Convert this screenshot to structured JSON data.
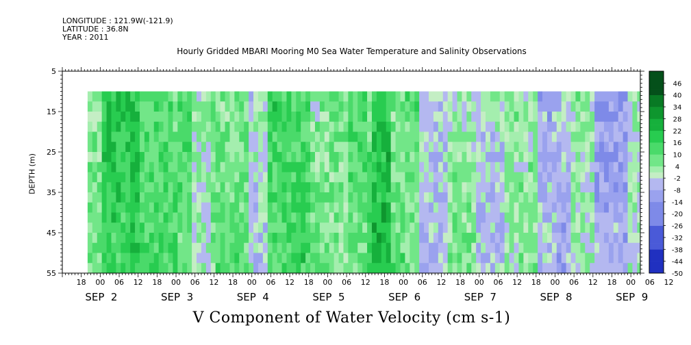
{
  "header": {
    "longitude": "LONGITUDE : 121.9W(-121.9)",
    "latitude": "LATITUDE : 36.8N",
    "year": "YEAR : 2011"
  },
  "chart_data": {
    "type": "heatmap",
    "title": "Hourly Gridded MBARI Mooring M0 Sea Water Temperature and Salinity Observations",
    "xlabel": "V Component of Water Velocity (cm s-1)",
    "ylabel": "DEPTH (m)",
    "ylim": [
      55,
      5
    ],
    "y_ticks": [
      "5",
      "15",
      "25",
      "35",
      "45",
      "55"
    ],
    "x_hour_ticks": [
      "18",
      "00",
      "06",
      "12",
      "18",
      "00",
      "06",
      "12",
      "18",
      "00",
      "06",
      "12",
      "18",
      "00",
      "06",
      "12",
      "18",
      "00",
      "06",
      "12",
      "18",
      "00",
      "06",
      "12",
      "18",
      "00",
      "06",
      "12",
      "18",
      "00",
      "06",
      "12"
    ],
    "x_day_labels": [
      "SEP  2",
      "SEP  3",
      "SEP  4",
      "SEP  5",
      "SEP  6",
      "SEP  7",
      "SEP  8",
      "SEP  9"
    ],
    "x_range_hours_from_sep1_12": [
      0,
      183
    ],
    "data_start_hour": 8,
    "data_depth_range": [
      10,
      55
    ],
    "colorbar_labels": [
      "46",
      "40",
      "34",
      "28",
      "22",
      "16",
      "10",
      "4",
      "-2",
      "-8",
      "-14",
      "-20",
      "-26",
      "-32",
      "-38",
      "-44",
      "-50"
    ],
    "colorbar_range": [
      -50,
      52
    ],
    "colors": {
      "strong_green": "#1ed24a",
      "green": "#50e070",
      "light_green": "#96eca4",
      "pale_green": "#b4f0b6",
      "light_blue": "#b4b8f0",
      "blue": "#9aa2ee",
      "deep_blue": "#7e8ae8"
    },
    "description_bands": [
      {
        "start_hour": 8,
        "end_hour": 12,
        "v": 6
      },
      {
        "start_hour": 12,
        "end_hour": 24,
        "v": 18
      },
      {
        "start_hour": 24,
        "end_hour": 40,
        "v": 12
      },
      {
        "start_hour": 40,
        "end_hour": 46,
        "v": 2
      },
      {
        "start_hour": 46,
        "end_hour": 58,
        "v": 8
      },
      {
        "start_hour": 58,
        "end_hour": 64,
        "v": -2
      },
      {
        "start_hour": 64,
        "end_hour": 78,
        "v": 14
      },
      {
        "start_hour": 78,
        "end_hour": 90,
        "v": 6
      },
      {
        "start_hour": 90,
        "end_hour": 98,
        "v": 10
      },
      {
        "start_hour": 98,
        "end_hour": 104,
        "v": 22
      },
      {
        "start_hour": 104,
        "end_hour": 112,
        "v": 8
      },
      {
        "start_hour": 112,
        "end_hour": 122,
        "v": -4
      },
      {
        "start_hour": 122,
        "end_hour": 130,
        "v": 4
      },
      {
        "start_hour": 130,
        "end_hour": 140,
        "v": -4
      },
      {
        "start_hour": 140,
        "end_hour": 150,
        "v": 4
      },
      {
        "start_hour": 150,
        "end_hour": 160,
        "v": -6
      },
      {
        "start_hour": 160,
        "end_hour": 168,
        "v": 2
      },
      {
        "start_hour": 168,
        "end_hour": 178,
        "v": -10
      },
      {
        "start_hour": 178,
        "end_hour": 183,
        "v": 0
      }
    ]
  }
}
